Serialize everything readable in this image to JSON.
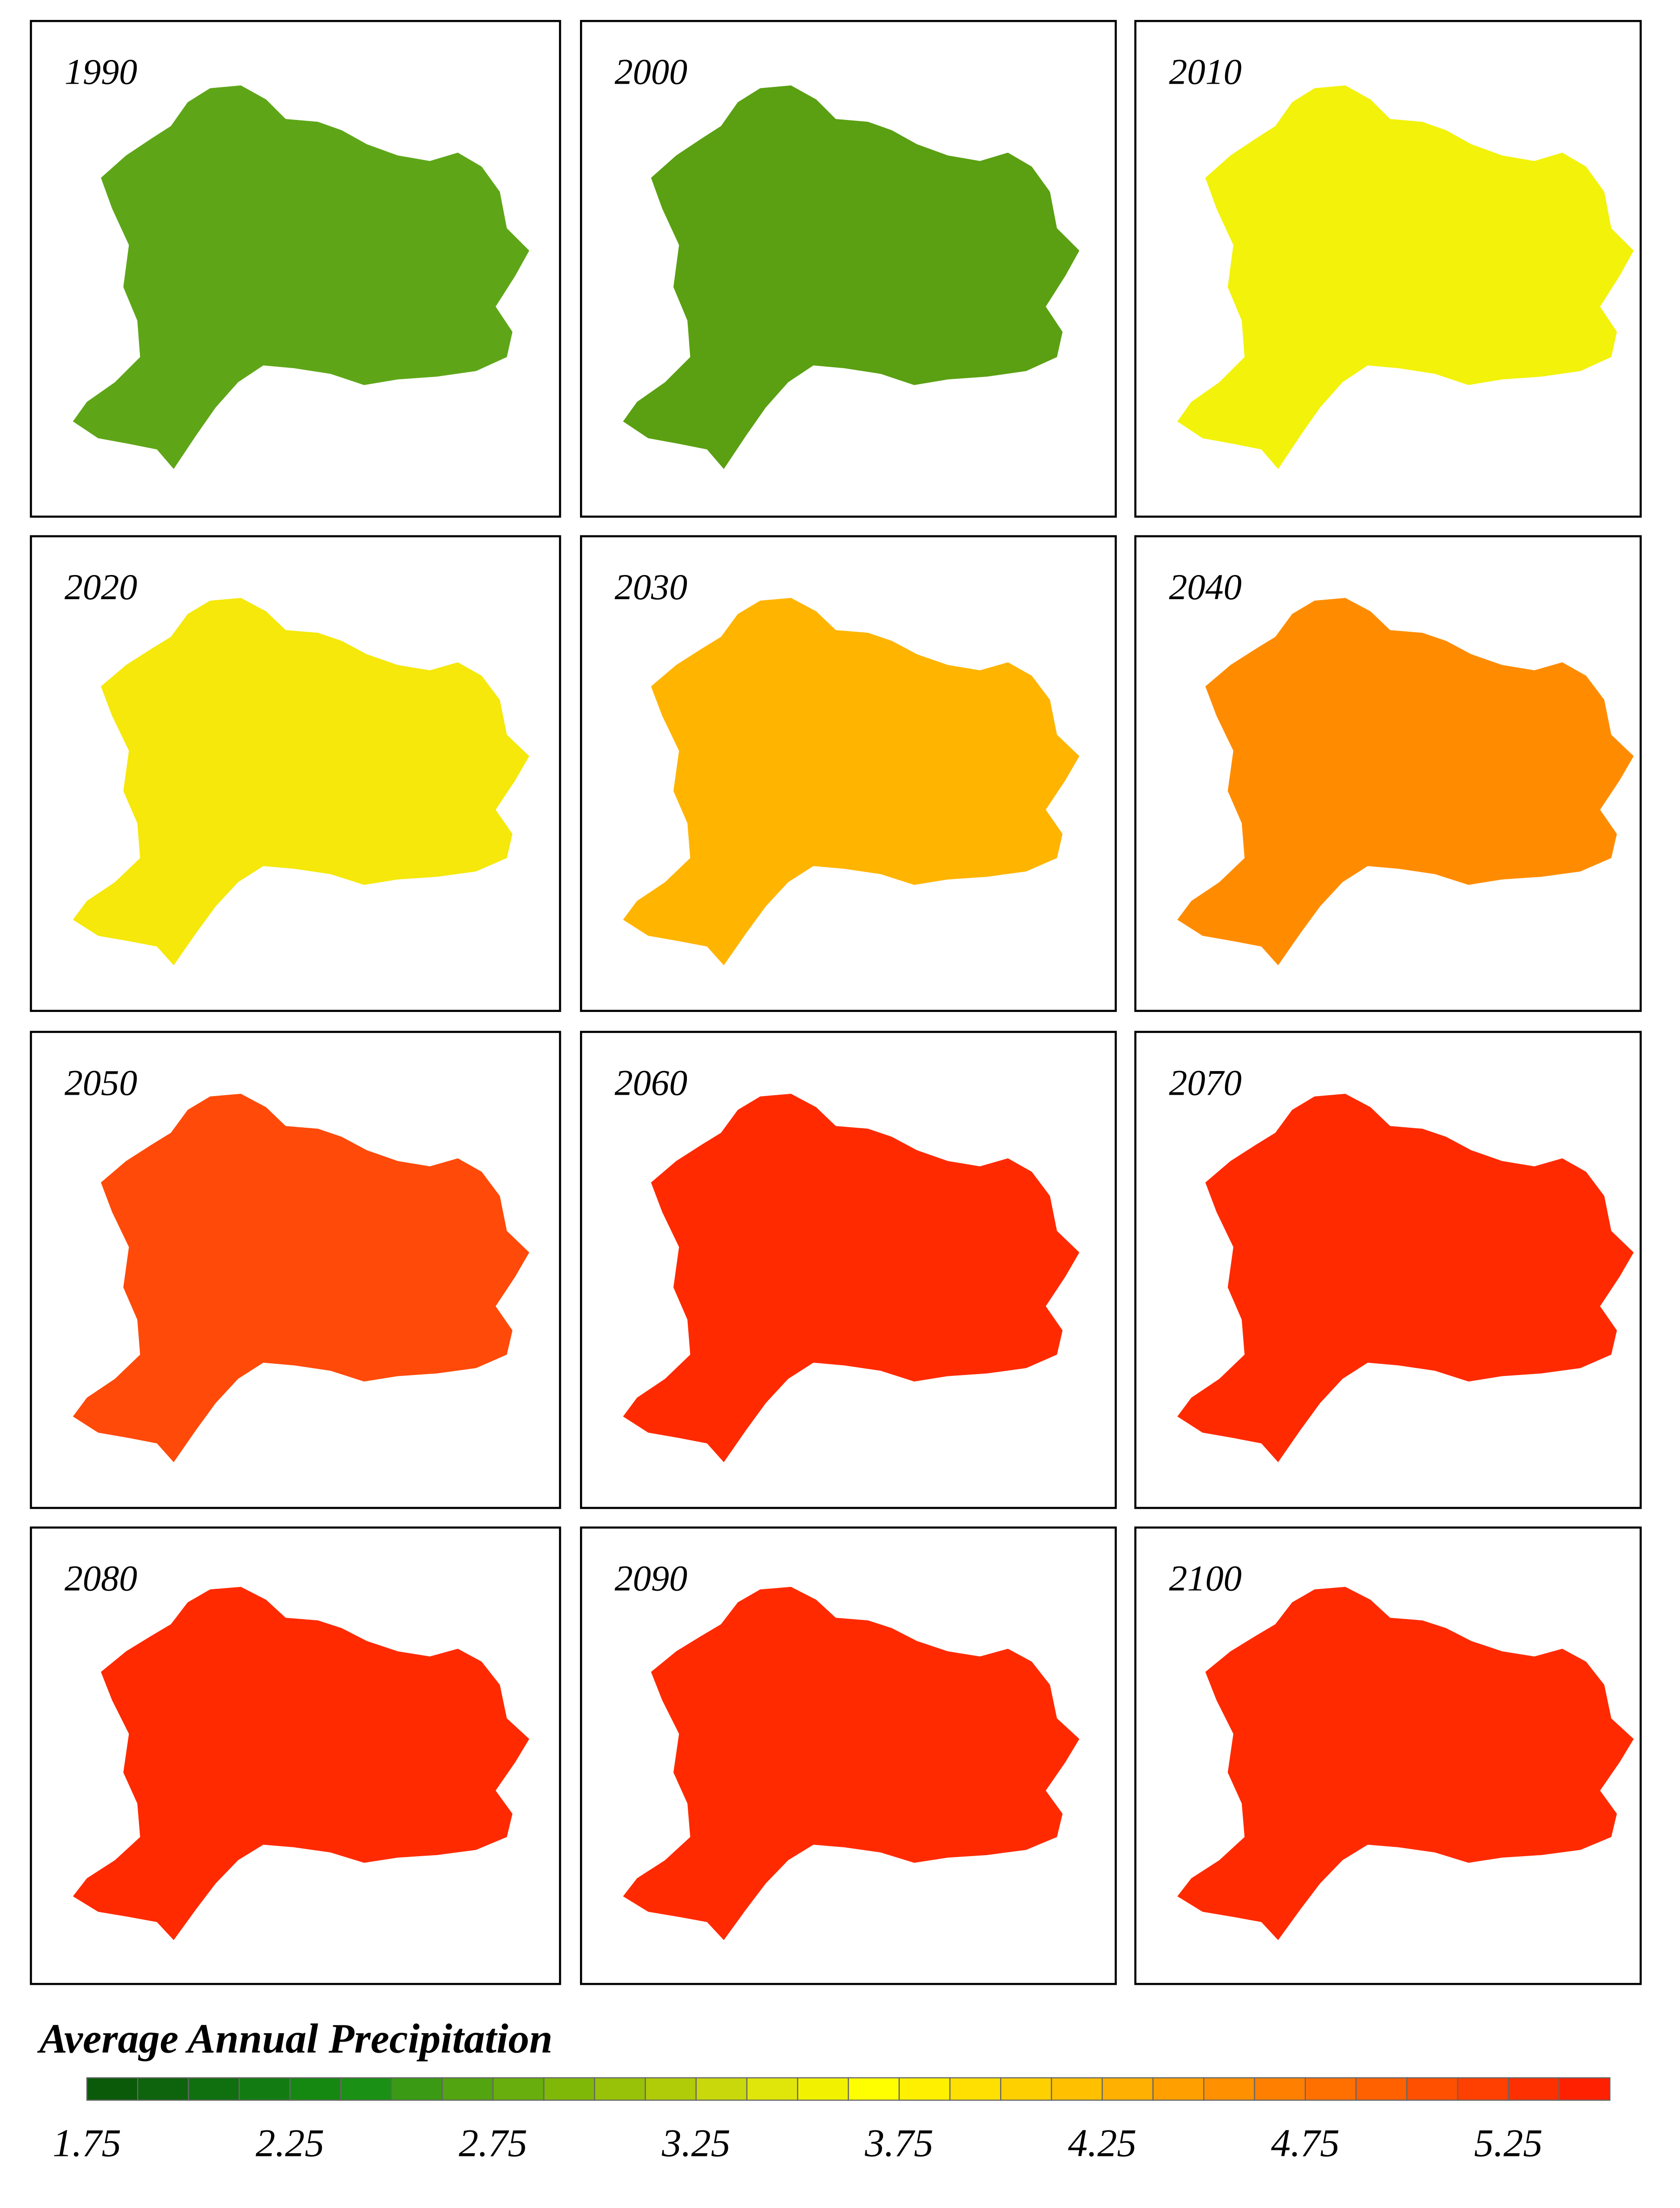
{
  "panels": [
    {
      "label": "1990",
      "color": "#5ea618"
    },
    {
      "label": "2000",
      "color": "#5aa012"
    },
    {
      "label": "2010",
      "color": "#f2f20a"
    },
    {
      "label": "2020",
      "color": "#f5e80a"
    },
    {
      "label": "2030",
      "color": "#ffb400"
    },
    {
      "label": "2040",
      "color": "#ff8c00"
    },
    {
      "label": "2050",
      "color": "#ff4a0a"
    },
    {
      "label": "2060",
      "color": "#ff2a00"
    },
    {
      "label": "2070",
      "color": "#ff2a00"
    },
    {
      "label": "2080",
      "color": "#ff2a00"
    },
    {
      "label": "2090",
      "color": "#ff2a00"
    },
    {
      "label": "2100",
      "color": "#ff2a00"
    }
  ],
  "legend": {
    "title": "Average Annual Precipitation",
    "lim": [
      1.75,
      5.5
    ],
    "ticks": [
      1.75,
      2.25,
      2.75,
      3.25,
      3.75,
      4.25,
      4.75,
      5.25
    ],
    "colors": [
      "#0a5a0a",
      "#0d640c",
      "#107010",
      "#127c12",
      "#158812",
      "#1a9014",
      "#3a9a14",
      "#52a410",
      "#68ae0c",
      "#80b808",
      "#98c208",
      "#b0cc08",
      "#c8d80a",
      "#e0e60a",
      "#f2f200",
      "#ffff00",
      "#fff000",
      "#ffe000",
      "#ffd000",
      "#ffc000",
      "#ffb000",
      "#ffa000",
      "#ff9000",
      "#ff8000",
      "#ff7000",
      "#ff6000",
      "#ff5000",
      "#ff4000",
      "#ff3000",
      "#ff2000"
    ]
  }
}
